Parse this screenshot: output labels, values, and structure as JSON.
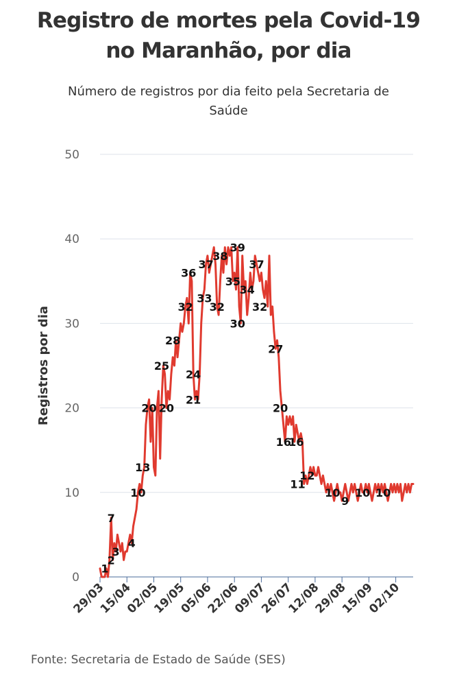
{
  "header": {
    "title_line1": "Registro de mortes pela Covid-19",
    "title_line2": "no Maranhão, por dia",
    "subtitle_line1": "Número de registros por dia feito pela Secretaria de",
    "subtitle_line2": "Saúde"
  },
  "footer": {
    "source": "Fonte: Secretaria de Estado de Saúde (SES)"
  },
  "colors": {
    "line": "#e03a2f",
    "grid": "#dde2ea",
    "axis": "#4a6b9a"
  },
  "chart_data": {
    "type": "line",
    "title": "Registro de mortes pela Covid-19 no Maranhão, por dia",
    "subtitle": "Número de registros por dia feito pela Secretaria de Saúde",
    "xlabel": "",
    "ylabel": "Registros por dia",
    "ylim": [
      0,
      50
    ],
    "yticks": [
      0,
      10,
      20,
      30,
      40,
      50
    ],
    "xlim": [
      "2020-03-29",
      "2020-10-13"
    ],
    "xticks": [
      "29/03",
      "15/04",
      "02/05",
      "19/05",
      "05/06",
      "22/06",
      "09/07",
      "26/07",
      "12/08",
      "29/08",
      "15/09",
      "02/10"
    ],
    "grid": true,
    "series": [
      {
        "points": [
          [
            "2020-03-29",
            1
          ],
          [
            "2020-03-30",
            0
          ],
          [
            "2020-04-01",
            0
          ],
          [
            "2020-04-02",
            1
          ],
          [
            "2020-04-03",
            0
          ],
          [
            "2020-04-04",
            2
          ],
          [
            "2020-04-05",
            7
          ],
          [
            "2020-04-06",
            2
          ],
          [
            "2020-04-07",
            4
          ],
          [
            "2020-04-08",
            3
          ],
          [
            "2020-04-09",
            5
          ],
          [
            "2020-04-10",
            4
          ],
          [
            "2020-04-11",
            3
          ],
          [
            "2020-04-12",
            4
          ],
          [
            "2020-04-13",
            2
          ],
          [
            "2020-04-14",
            3
          ],
          [
            "2020-04-15",
            3
          ],
          [
            "2020-04-16",
            4
          ],
          [
            "2020-04-17",
            5
          ],
          [
            "2020-04-18",
            4
          ],
          [
            "2020-04-19",
            6
          ],
          [
            "2020-04-20",
            7
          ],
          [
            "2020-04-21",
            8
          ],
          [
            "2020-04-22",
            10
          ],
          [
            "2020-04-23",
            11
          ],
          [
            "2020-04-24",
            10
          ],
          [
            "2020-04-25",
            12
          ],
          [
            "2020-04-26",
            13
          ],
          [
            "2020-04-27",
            18
          ],
          [
            "2020-04-28",
            20
          ],
          [
            "2020-04-29",
            21
          ],
          [
            "2020-04-30",
            16
          ],
          [
            "2020-05-01",
            20
          ],
          [
            "2020-05-02",
            13
          ],
          [
            "2020-05-03",
            12
          ],
          [
            "2020-05-04",
            20
          ],
          [
            "2020-05-05",
            22
          ],
          [
            "2020-05-06",
            14
          ],
          [
            "2020-05-07",
            21
          ],
          [
            "2020-05-08",
            25
          ],
          [
            "2020-05-09",
            24
          ],
          [
            "2020-05-10",
            20
          ],
          [
            "2020-05-11",
            22
          ],
          [
            "2020-05-12",
            21
          ],
          [
            "2020-05-13",
            24
          ],
          [
            "2020-05-14",
            26
          ],
          [
            "2020-05-15",
            25
          ],
          [
            "2020-05-16",
            28
          ],
          [
            "2020-05-17",
            26
          ],
          [
            "2020-05-18",
            28
          ],
          [
            "2020-05-19",
            30
          ],
          [
            "2020-05-20",
            29
          ],
          [
            "2020-05-21",
            30
          ],
          [
            "2020-05-22",
            32
          ],
          [
            "2020-05-23",
            33
          ],
          [
            "2020-05-24",
            30
          ],
          [
            "2020-05-25",
            36
          ],
          [
            "2020-05-26",
            35
          ],
          [
            "2020-05-27",
            24
          ],
          [
            "2020-05-28",
            21
          ],
          [
            "2020-05-29",
            22
          ],
          [
            "2020-05-30",
            21
          ],
          [
            "2020-05-31",
            24
          ],
          [
            "2020-06-01",
            30
          ],
          [
            "2020-06-02",
            33
          ],
          [
            "2020-06-03",
            34
          ],
          [
            "2020-06-04",
            37
          ],
          [
            "2020-06-05",
            38
          ],
          [
            "2020-06-06",
            36
          ],
          [
            "2020-06-07",
            37
          ],
          [
            "2020-06-08",
            38
          ],
          [
            "2020-06-09",
            39
          ],
          [
            "2020-06-10",
            37
          ],
          [
            "2020-06-11",
            32
          ],
          [
            "2020-06-12",
            31
          ],
          [
            "2020-06-13",
            35
          ],
          [
            "2020-06-14",
            38
          ],
          [
            "2020-06-15",
            36
          ],
          [
            "2020-06-16",
            39
          ],
          [
            "2020-06-17",
            37
          ],
          [
            "2020-06-18",
            39
          ],
          [
            "2020-06-19",
            38
          ],
          [
            "2020-06-20",
            39
          ],
          [
            "2020-06-21",
            35
          ],
          [
            "2020-06-22",
            36
          ],
          [
            "2020-06-23",
            34
          ],
          [
            "2020-06-24",
            39
          ],
          [
            "2020-06-25",
            32
          ],
          [
            "2020-06-26",
            30
          ],
          [
            "2020-06-27",
            38
          ],
          [
            "2020-06-28",
            34
          ],
          [
            "2020-06-29",
            35
          ],
          [
            "2020-06-30",
            31
          ],
          [
            "2020-07-01",
            33
          ],
          [
            "2020-07-02",
            36
          ],
          [
            "2020-07-03",
            34
          ],
          [
            "2020-07-04",
            35
          ],
          [
            "2020-07-05",
            38
          ],
          [
            "2020-07-06",
            37
          ],
          [
            "2020-07-07",
            36
          ],
          [
            "2020-07-08",
            35
          ],
          [
            "2020-07-09",
            36
          ],
          [
            "2020-07-10",
            34
          ],
          [
            "2020-07-11",
            33
          ],
          [
            "2020-07-12",
            35
          ],
          [
            "2020-07-13",
            32
          ],
          [
            "2020-07-14",
            38
          ],
          [
            "2020-07-15",
            31
          ],
          [
            "2020-07-16",
            32
          ],
          [
            "2020-07-17",
            29
          ],
          [
            "2020-07-18",
            27
          ],
          [
            "2020-07-19",
            28
          ],
          [
            "2020-07-20",
            26
          ],
          [
            "2020-07-21",
            22
          ],
          [
            "2020-07-22",
            20
          ],
          [
            "2020-07-23",
            18
          ],
          [
            "2020-07-24",
            16
          ],
          [
            "2020-07-25",
            19
          ],
          [
            "2020-07-26",
            18
          ],
          [
            "2020-07-27",
            19
          ],
          [
            "2020-07-28",
            18
          ],
          [
            "2020-07-29",
            19
          ],
          [
            "2020-07-30",
            16
          ],
          [
            "2020-07-31",
            18
          ],
          [
            "2020-08-01",
            17
          ],
          [
            "2020-08-02",
            16
          ],
          [
            "2020-08-03",
            17
          ],
          [
            "2020-08-04",
            16
          ],
          [
            "2020-08-05",
            11
          ],
          [
            "2020-08-06",
            12
          ],
          [
            "2020-08-07",
            11
          ],
          [
            "2020-08-08",
            12
          ],
          [
            "2020-08-09",
            13
          ],
          [
            "2020-08-10",
            12
          ],
          [
            "2020-08-11",
            13
          ],
          [
            "2020-08-12",
            12
          ],
          [
            "2020-08-13",
            12
          ],
          [
            "2020-08-14",
            13
          ],
          [
            "2020-08-15",
            12
          ],
          [
            "2020-08-16",
            11
          ],
          [
            "2020-08-17",
            12
          ],
          [
            "2020-08-18",
            11
          ],
          [
            "2020-08-19",
            10
          ],
          [
            "2020-08-20",
            11
          ],
          [
            "2020-08-21",
            10
          ],
          [
            "2020-08-22",
            11
          ],
          [
            "2020-08-23",
            10
          ],
          [
            "2020-08-24",
            9
          ],
          [
            "2020-08-25",
            10
          ],
          [
            "2020-08-26",
            11
          ],
          [
            "2020-08-27",
            10
          ],
          [
            "2020-08-28",
            10
          ],
          [
            "2020-08-29",
            9
          ],
          [
            "2020-08-30",
            10
          ],
          [
            "2020-08-31",
            11
          ],
          [
            "2020-09-01",
            10
          ],
          [
            "2020-09-02",
            9
          ],
          [
            "2020-09-03",
            10
          ],
          [
            "2020-09-04",
            11
          ],
          [
            "2020-09-05",
            10
          ],
          [
            "2020-09-06",
            11
          ],
          [
            "2020-09-07",
            10
          ],
          [
            "2020-09-08",
            9
          ],
          [
            "2020-09-09",
            10
          ],
          [
            "2020-09-10",
            11
          ],
          [
            "2020-09-11",
            10
          ],
          [
            "2020-09-12",
            10
          ],
          [
            "2020-09-13",
            11
          ],
          [
            "2020-09-14",
            10
          ],
          [
            "2020-09-15",
            11
          ],
          [
            "2020-09-16",
            10
          ],
          [
            "2020-09-17",
            9
          ],
          [
            "2020-09-18",
            10
          ],
          [
            "2020-09-19",
            11
          ],
          [
            "2020-09-20",
            10
          ],
          [
            "2020-09-21",
            11
          ],
          [
            "2020-09-22",
            10
          ],
          [
            "2020-09-23",
            11
          ],
          [
            "2020-09-24",
            10
          ],
          [
            "2020-09-25",
            11
          ],
          [
            "2020-09-26",
            10
          ],
          [
            "2020-09-27",
            9
          ],
          [
            "2020-09-28",
            10
          ],
          [
            "2020-09-29",
            11
          ],
          [
            "2020-09-30",
            10
          ],
          [
            "2020-10-01",
            11
          ],
          [
            "2020-10-02",
            10
          ],
          [
            "2020-10-03",
            11
          ],
          [
            "2020-10-04",
            10
          ],
          [
            "2020-10-05",
            11
          ],
          [
            "2020-10-06",
            9
          ],
          [
            "2020-10-07",
            10
          ],
          [
            "2020-10-08",
            11
          ],
          [
            "2020-10-09",
            10
          ],
          [
            "2020-10-10",
            11
          ],
          [
            "2020-10-11",
            10
          ],
          [
            "2020-10-12",
            11
          ],
          [
            "2020-10-13",
            11
          ]
        ]
      }
    ],
    "annotations": [
      {
        "x": "2020-04-01",
        "y": 1,
        "text": "1"
      },
      {
        "x": "2020-04-05",
        "y": 2,
        "text": "2"
      },
      {
        "x": "2020-04-05",
        "y": 7,
        "text": "7"
      },
      {
        "x": "2020-04-08",
        "y": 3,
        "text": "3"
      },
      {
        "x": "2020-04-18",
        "y": 4,
        "text": "4"
      },
      {
        "x": "2020-04-22",
        "y": 10,
        "text": "10"
      },
      {
        "x": "2020-04-25",
        "y": 13,
        "text": "13"
      },
      {
        "x": "2020-04-29",
        "y": 20,
        "text": "20"
      },
      {
        "x": "2020-05-07",
        "y": 25,
        "text": "25"
      },
      {
        "x": "2020-05-10",
        "y": 20,
        "text": "20"
      },
      {
        "x": "2020-05-14",
        "y": 28,
        "text": "28"
      },
      {
        "x": "2020-05-22",
        "y": 32,
        "text": "32"
      },
      {
        "x": "2020-05-24",
        "y": 36,
        "text": "36"
      },
      {
        "x": "2020-05-27",
        "y": 24,
        "text": "24"
      },
      {
        "x": "2020-05-27",
        "y": 21,
        "text": "21"
      },
      {
        "x": "2020-06-03",
        "y": 33,
        "text": "33"
      },
      {
        "x": "2020-06-04",
        "y": 37,
        "text": "37"
      },
      {
        "x": "2020-06-13",
        "y": 38,
        "text": "38"
      },
      {
        "x": "2020-06-11",
        "y": 32,
        "text": "32"
      },
      {
        "x": "2020-06-21",
        "y": 35,
        "text": "35"
      },
      {
        "x": "2020-06-24",
        "y": 39,
        "text": "39"
      },
      {
        "x": "2020-06-24",
        "y": 30,
        "text": "30"
      },
      {
        "x": "2020-06-30",
        "y": 34,
        "text": "34"
      },
      {
        "x": "2020-07-06",
        "y": 37,
        "text": "37"
      },
      {
        "x": "2020-07-08",
        "y": 32,
        "text": "32"
      },
      {
        "x": "2020-07-18",
        "y": 27,
        "text": "27"
      },
      {
        "x": "2020-07-21",
        "y": 20,
        "text": "20"
      },
      {
        "x": "2020-07-23",
        "y": 16,
        "text": "16"
      },
      {
        "x": "2020-07-31",
        "y": 16,
        "text": "16"
      },
      {
        "x": "2020-08-01",
        "y": 11,
        "text": "11"
      },
      {
        "x": "2020-08-07",
        "y": 12,
        "text": "12"
      },
      {
        "x": "2020-08-23",
        "y": 10,
        "text": "10"
      },
      {
        "x": "2020-08-31",
        "y": 9,
        "text": "9"
      },
      {
        "x": "2020-09-11",
        "y": 10,
        "text": "10"
      },
      {
        "x": "2020-09-24",
        "y": 10,
        "text": "10"
      }
    ]
  }
}
